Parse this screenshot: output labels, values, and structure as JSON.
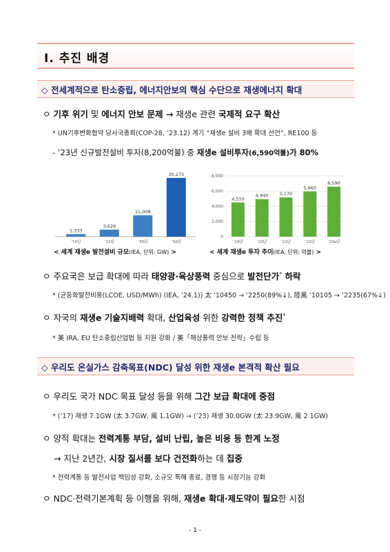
{
  "title": "Ⅰ. 추진 배경",
  "section1": {
    "header": "◇ 전세계적으로 탄소중립, 에너지안보의 핵심 수단으로 재생에너지 확대",
    "b1": {
      "p1": "ㅇ ",
      "p2": "기후 위기",
      "p3": " 및 ",
      "p4": "에너지 안보 문제 →",
      "p5": " 재생e 관련 ",
      "p6": "국제적 요구 확산"
    },
    "b1_note": "* UN기후변화협약 당사국총회(COP-28, ’23.12) 계기 “재생e 설비 3배 확대 선언”, RE100 등",
    "b1_sub": {
      "p1": "- ’23년 신규발전설비 투자(8,200억불) 중 ",
      "p2": "재생e 설비투자",
      "p3": "(6,590억불)",
      "p4": "가 80%"
    },
    "b2": {
      "p1": "ㅇ 주요국은 보급 확대에 따라 ",
      "p2": "태양광·육상풍력",
      "p3": " 중심으로 ",
      "p4": "발전단가",
      "p5": "*",
      "p6": " 하락"
    },
    "b2_note": "* (균등화발전비용(LCOE, USD/MWh) (IEA, ’24.1)) 太 ’10450 → ’2250(89%↓), 陸風 ’10105 → ’2235(67%↓)",
    "b3": {
      "p1": "ㅇ 자국의 ",
      "p2": "재생e 기술지배력",
      "p3": " 확대, ",
      "p4": "산업육성",
      "p5": " 위한 ",
      "p6": "강력한 정책 추진",
      "p7": "*"
    },
    "b3_note": "* 美 IRA, EU 탄소중립산업법 등 지원 강화 / 美「해상풍력 안보 전략」수립 등"
  },
  "section2": {
    "header": "◇ 우리도 온실가스 감축목표(NDC) 달성 위한 재생e 본격적 확산 필요",
    "b1": {
      "p1": "ㅇ 우리도 국가 NDC 목표 달성 등을 위해 ",
      "p2": "그간 보급 확대에 중점"
    },
    "b1_note": "* (’17) 재생 7.1GW (太 3.7GW, 風 1.1GW) → (’23) 재생 30.0GW (太 23.9GW, 風 2.1GW)",
    "b2": {
      "p1": "ㅇ 양적 확대는 ",
      "p2": "전력계통 부담, 설비 난립, 높은 비용 등 한계 노정"
    },
    "b2_sub": {
      "p1": "→ 지난 2년간, ",
      "p2": "시장 질서를 보다 건전화",
      "p3": "하는 데 ",
      "p4": "집중"
    },
    "b2_note": "* 전력계통 등 발전사업 책임성 강화, 소규모 특혜 종료, 경쟁 등 시장기능 강화",
    "b3": {
      "p1": "ㅇ NDC·전력기본계획 등 이행을 위해, ",
      "p2": "재생e 확대·제도약이 필요",
      "p3": "한 시점"
    }
  },
  "captions": {
    "c1": "< 세계 재생e 발전설비 규모",
    "c1_unit": "(IEA, 단위: GW)",
    "c1_end": " >",
    "c2": "< 세계 재생e 투자 추이",
    "c2_unit": "(IEA, 단위: 억불)",
    "c2_end": " >"
  },
  "page_number": "- 1 -",
  "chart_data": [
    {
      "type": "bar",
      "categories": [
        "’10년",
        "’22년",
        "’30년",
        "’50년"
      ],
      "values": [
        1333,
        3629,
        11008,
        30275
      ],
      "value_labels": [
        "1,333",
        "3,629",
        "11,008",
        "30,275"
      ],
      "ylim": [
        0,
        32000
      ],
      "grid": false,
      "bar_color": "#3f7fc1",
      "bar_highlight_color": "#1f5fb3"
    },
    {
      "type": "bar",
      "categories": [
        "’19년",
        "’20년",
        "’21년",
        "’22년",
        "’23e년"
      ],
      "values": [
        4510,
        4940,
        5170,
        5960,
        6590
      ],
      "value_labels": [
        "4,510",
        "4,940",
        "5,170",
        "5,960",
        "6,590"
      ],
      "yticks": [
        "0",
        "2,000",
        "4,000",
        "6,000",
        "8,000"
      ],
      "ylim": [
        0,
        8000
      ],
      "grid": true,
      "bar_color": "#5fae3a"
    }
  ]
}
